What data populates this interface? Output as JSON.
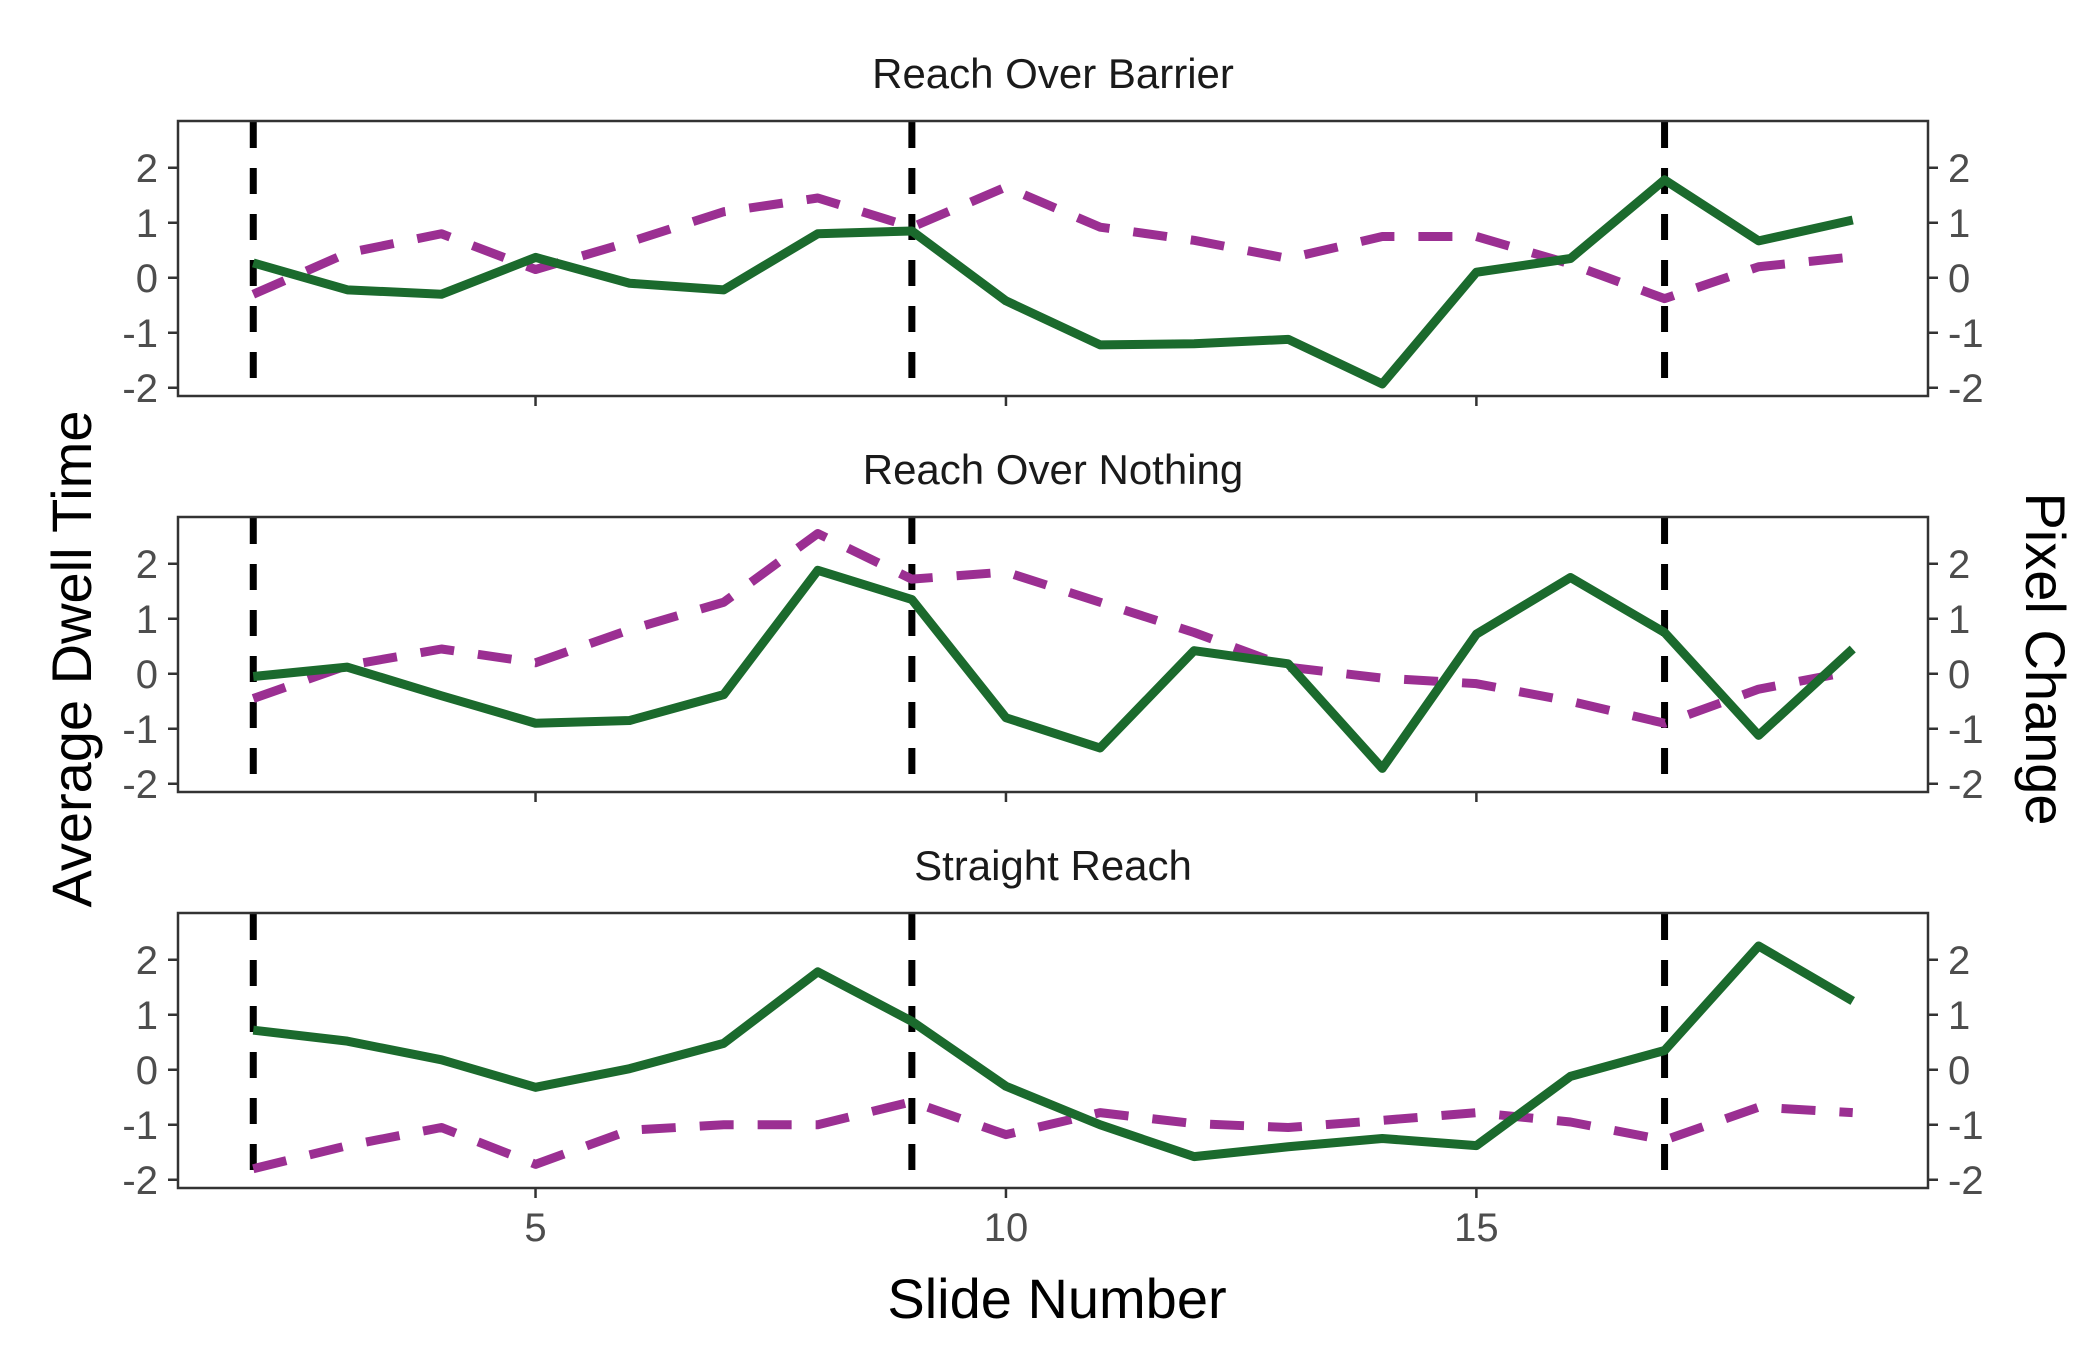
{
  "chart_data": {
    "type": "line",
    "x_label": "Slide Number",
    "y_label_left": "Average Dwell Time",
    "y_label_right": "Pixel Change",
    "xlim": [
      1.2,
      19.8
    ],
    "ylim": [
      -2.15,
      2.85
    ],
    "x_ticks": [
      5,
      10,
      15
    ],
    "x_tick_labels": [
      "5",
      "10",
      "15"
    ],
    "y_ticks": [
      -2,
      -1,
      0,
      1,
      2
    ],
    "y_tick_labels": [
      "-2",
      "-1",
      "0",
      "1",
      "2"
    ],
    "vlines": [
      2,
      9,
      17
    ],
    "colors": {
      "dwell_time": "#1b6a2d",
      "pixel_change": "#9b2f92",
      "vlines": "#000000"
    },
    "x": [
      2,
      3,
      4,
      5,
      6,
      7,
      8,
      9,
      10,
      11,
      12,
      13,
      14,
      15,
      16,
      17,
      18,
      19
    ],
    "panels": [
      {
        "title": "Reach Over Barrier",
        "series": [
          {
            "style": "solid",
            "values": [
              0.27,
              -0.22,
              -0.3,
              0.37,
              -0.1,
              -0.22,
              0.8,
              0.85,
              -0.42,
              -1.22,
              -1.2,
              -1.12,
              -1.93,
              0.1,
              0.35,
              1.78,
              0.67,
              1.05
            ]
          },
          {
            "style": "dashed",
            "values": [
              -0.3,
              0.45,
              0.8,
              0.15,
              0.65,
              1.2,
              1.45,
              0.92,
              1.65,
              0.92,
              0.68,
              0.35,
              0.75,
              0.75,
              0.25,
              -0.38,
              0.2,
              0.38
            ]
          }
        ]
      },
      {
        "title": "Reach Over Nothing",
        "series": [
          {
            "style": "solid",
            "values": [
              -0.05,
              0.12,
              -0.4,
              -0.9,
              -0.85,
              -0.38,
              1.88,
              1.35,
              -0.8,
              -1.35,
              0.42,
              0.18,
              -1.72,
              0.72,
              1.75,
              0.75,
              -1.12,
              0.45
            ]
          },
          {
            "style": "dashed",
            "values": [
              -0.45,
              0.15,
              0.45,
              0.2,
              0.8,
              1.3,
              2.55,
              1.72,
              1.85,
              1.3,
              0.75,
              0.12,
              -0.08,
              -0.18,
              -0.5,
              -0.9,
              -0.28,
              0.05
            ]
          }
        ]
      },
      {
        "title": "Straight Reach",
        "series": [
          {
            "style": "solid",
            "values": [
              0.72,
              0.52,
              0.18,
              -0.32,
              0.02,
              0.48,
              1.78,
              0.88,
              -0.3,
              -1.0,
              -1.58,
              -1.4,
              -1.25,
              -1.38,
              -0.12,
              0.35,
              2.25,
              1.25
            ]
          },
          {
            "style": "dashed",
            "values": [
              -1.8,
              -1.38,
              -1.05,
              -1.72,
              -1.1,
              -1.0,
              -1.0,
              -0.58,
              -1.18,
              -0.78,
              -0.98,
              -1.05,
              -0.92,
              -0.78,
              -0.95,
              -1.28,
              -0.68,
              -0.78
            ]
          }
        ]
      }
    ]
  }
}
